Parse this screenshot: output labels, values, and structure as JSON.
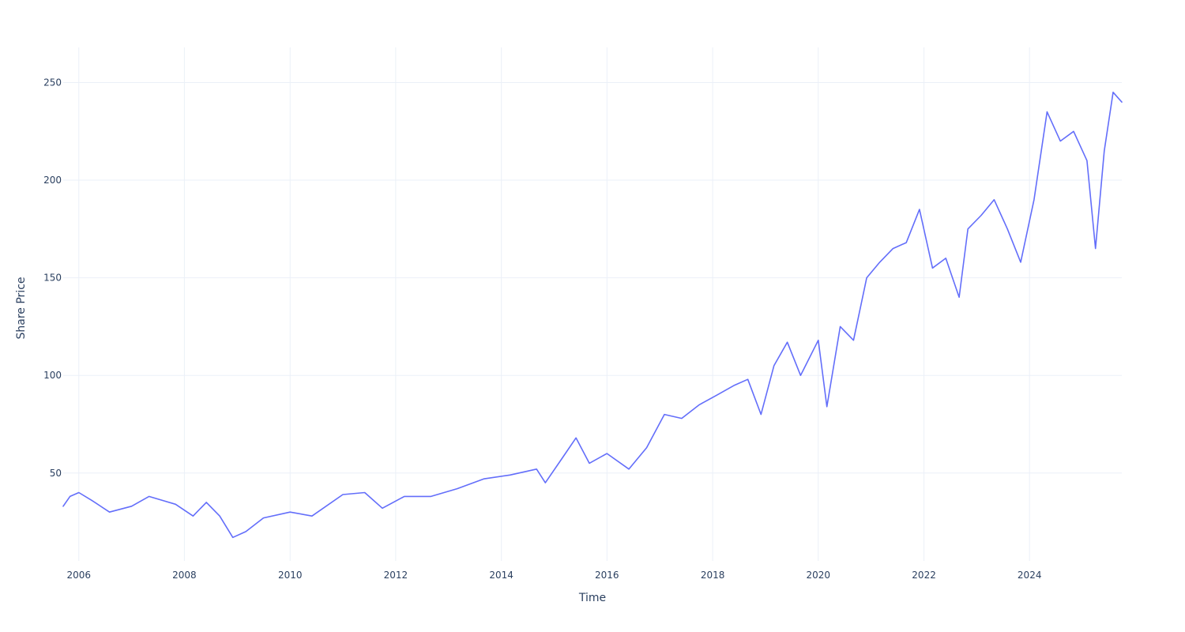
{
  "chart_data": {
    "type": "line",
    "title": "",
    "xlabel": "Time",
    "ylabel": "Share Price",
    "x_range": [
      "2005-09-15",
      "2025-09-30"
    ],
    "y_range": [
      5,
      268
    ],
    "x_ticks": [
      "2006",
      "2008",
      "2010",
      "2012",
      "2014",
      "2016",
      "2018",
      "2020",
      "2022",
      "2024"
    ],
    "y_ticks": [
      50,
      100,
      150,
      200,
      250
    ],
    "grid": true,
    "legend": "none",
    "series": [
      {
        "color": "#636efa",
        "x": [
          "2005-09-15",
          "2005-11-01",
          "2006-01-01",
          "2006-04-01",
          "2006-08-01",
          "2007-01-01",
          "2007-05-01",
          "2007-11-01",
          "2008-03-01",
          "2008-06-01",
          "2008-09-01",
          "2008-12-01",
          "2009-03-01",
          "2009-07-01",
          "2010-01-01",
          "2010-06-01",
          "2011-01-01",
          "2011-06-01",
          "2011-10-01",
          "2012-03-01",
          "2012-09-01",
          "2013-03-01",
          "2013-09-01",
          "2014-03-01",
          "2014-09-01",
          "2014-11-01",
          "2015-03-01",
          "2015-06-01",
          "2015-09-01",
          "2016-01-01",
          "2016-06-01",
          "2016-10-01",
          "2017-02-01",
          "2017-06-01",
          "2017-10-01",
          "2018-02-01",
          "2018-06-01",
          "2018-09-01",
          "2018-12-01",
          "2019-03-01",
          "2019-06-01",
          "2019-09-01",
          "2020-01-01",
          "2020-03-01",
          "2020-06-01",
          "2020-09-01",
          "2020-12-01",
          "2021-03-01",
          "2021-06-01",
          "2021-09-01",
          "2021-12-01",
          "2022-03-01",
          "2022-06-01",
          "2022-09-01",
          "2022-11-01",
          "2023-02-01",
          "2023-05-01",
          "2023-08-01",
          "2023-11-01",
          "2024-02-01",
          "2024-05-01",
          "2024-08-01",
          "2024-11-01",
          "2025-02-01",
          "2025-04-01",
          "2025-06-01",
          "2025-08-01",
          "2025-09-30"
        ],
        "y": [
          33,
          38,
          40,
          36,
          30,
          33,
          38,
          34,
          28,
          35,
          28,
          17,
          20,
          27,
          30,
          28,
          39,
          40,
          32,
          38,
          38,
          42,
          47,
          49,
          52,
          45,
          58,
          68,
          55,
          60,
          52,
          63,
          80,
          78,
          85,
          90,
          95,
          98,
          80,
          105,
          117,
          100,
          118,
          84,
          125,
          118,
          150,
          158,
          165,
          168,
          185,
          155,
          160,
          140,
          175,
          182,
          190,
          175,
          158,
          190,
          235,
          220,
          225,
          210,
          165,
          215,
          245,
          240
        ]
      }
    ]
  }
}
